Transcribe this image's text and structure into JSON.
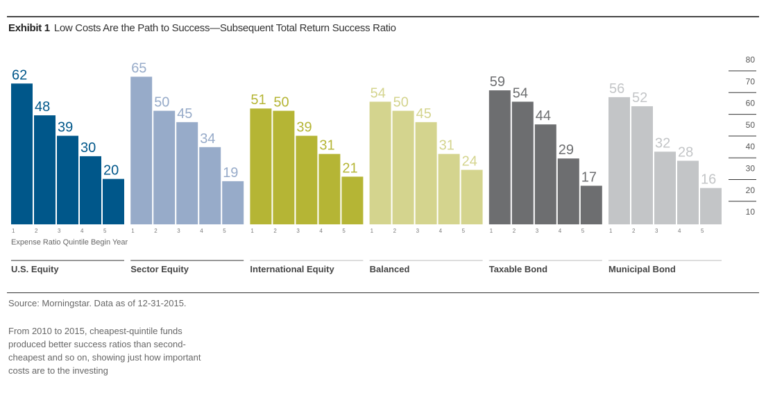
{
  "header": {
    "exhibit": "Exhibit 1",
    "title": "Low Costs Are the Path to Success—Subsequent Total Return Success Ratio"
  },
  "chart_data": {
    "type": "bar",
    "xlabel": "Expense Ratio Quintile Begin Year",
    "categories": [
      "1",
      "2",
      "3",
      "4",
      "5"
    ],
    "ylim": [
      0,
      80
    ],
    "yticks": [
      80,
      70,
      60,
      50,
      40,
      30,
      20,
      10
    ],
    "series": [
      {
        "name": "U.S. Equity",
        "values": [
          62,
          48,
          39,
          30,
          20
        ],
        "color": "#00578a"
      },
      {
        "name": "Sector Equity",
        "values": [
          65,
          50,
          45,
          34,
          19
        ],
        "color": "#97abc9"
      },
      {
        "name": "International Equity",
        "values": [
          51,
          50,
          39,
          31,
          21
        ],
        "color": "#b5b535"
      },
      {
        "name": "Balanced",
        "values": [
          54,
          50,
          45,
          31,
          24
        ],
        "color": "#d4d48e"
      },
      {
        "name": "Taxable Bond",
        "values": [
          59,
          54,
          44,
          29,
          17
        ],
        "color": "#6d6e70"
      },
      {
        "name": "Municipal Bond",
        "values": [
          56,
          52,
          32,
          28,
          16
        ],
        "color": "#c3c5c7"
      }
    ]
  },
  "footer": {
    "source": "Source: Morningstar. Data as of 12-31-2015.",
    "note": "From 2010 to 2015, cheapest-quintile funds produced better success ratios than second-cheapest and so on, showing just how important costs are to the investing"
  }
}
